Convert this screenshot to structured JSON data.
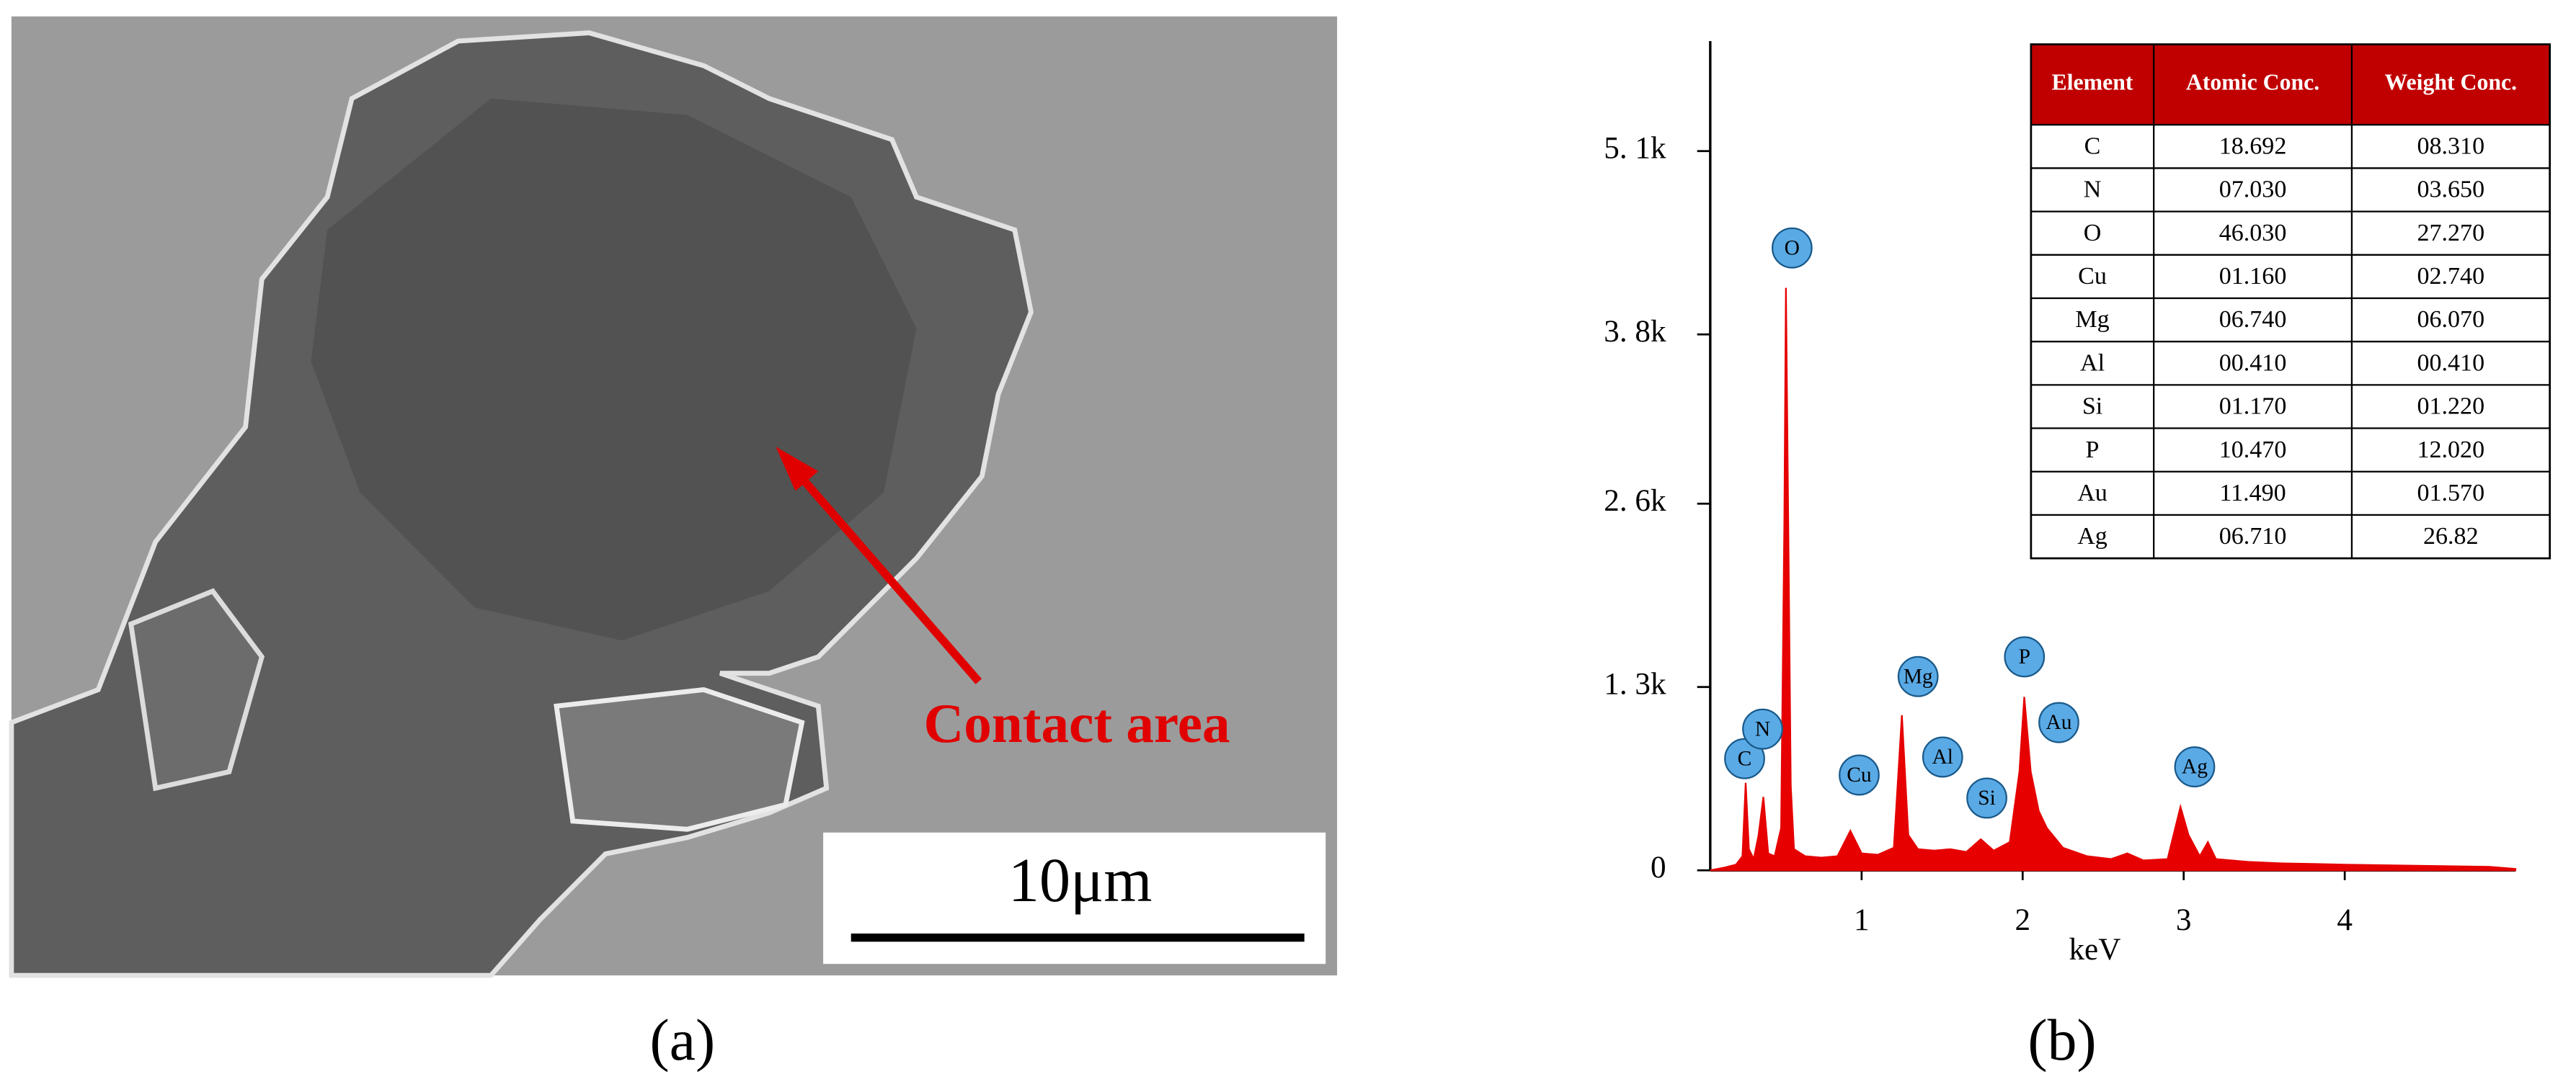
{
  "panel_a": {
    "annotation": "Contact area",
    "scale_bar": "10μm",
    "caption": "(a)"
  },
  "panel_b": {
    "caption": "(b)"
  },
  "chart_data": {
    "type": "area",
    "x_label": "keV",
    "x": [
      0.06,
      0.15,
      0.22,
      0.26,
      0.28,
      0.3,
      0.33,
      0.36,
      0.39,
      0.42,
      0.46,
      0.5,
      0.52,
      0.53,
      0.545,
      0.56,
      0.58,
      0.65,
      0.75,
      0.85,
      0.93,
      1.0,
      1.1,
      1.2,
      1.25,
      1.29,
      1.35,
      1.45,
      1.55,
      1.65,
      1.74,
      1.82,
      1.92,
      1.98,
      2.01,
      2.05,
      2.1,
      2.15,
      2.25,
      2.4,
      2.55,
      2.65,
      2.75,
      2.9,
      2.98,
      3.03,
      3.1,
      3.15,
      3.2,
      3.4,
      3.6,
      3.8,
      4.0,
      4.3,
      4.6,
      4.9,
      5.06
    ],
    "values": [
      0,
      20,
      40,
      100,
      620,
      150,
      80,
      250,
      520,
      120,
      100,
      300,
      2450,
      4130,
      2400,
      600,
      150,
      100,
      90,
      100,
      280,
      120,
      110,
      160,
      1100,
      250,
      150,
      140,
      150,
      130,
      220,
      140,
      200,
      700,
      1230,
      700,
      420,
      300,
      160,
      100,
      80,
      120,
      70,
      80,
      450,
      250,
      100,
      200,
      80,
      60,
      50,
      45,
      40,
      35,
      30,
      25,
      10
    ],
    "color": "#e60000",
    "xlim": [
      0.06,
      5.06
    ],
    "ylim": [
      0,
      5800
    ],
    "xticks": [
      1,
      2,
      3,
      4
    ],
    "yticks": [
      {
        "value": 0,
        "label": "0"
      },
      {
        "value": 1300,
        "label": "1. 3k"
      },
      {
        "value": 2600,
        "label": "2. 6k"
      },
      {
        "value": 3800,
        "label": "3. 8k"
      },
      {
        "value": 5100,
        "label": "5. 1k"
      }
    ],
    "peak_labels": [
      "C",
      "N",
      "O",
      "Cu",
      "Mg",
      "Al",
      "Si",
      "P",
      "Au",
      "Ag"
    ]
  },
  "table": {
    "header": [
      "Element",
      "Atomic Conc.",
      "Weight Conc."
    ],
    "rows": [
      [
        "C",
        "18.692",
        "08.310"
      ],
      [
        "N",
        "07.030",
        "03.650"
      ],
      [
        "O",
        "46.030",
        "27.270"
      ],
      [
        "Cu",
        "01.160",
        "02.740"
      ],
      [
        "Mg",
        "06.740",
        "06.070"
      ],
      [
        "Al",
        "00.410",
        "00.410"
      ],
      [
        "Si",
        "01.170",
        "01.220"
      ],
      [
        "P",
        "10.470",
        "12.020"
      ],
      [
        "Au",
        "11.490",
        "01.570"
      ],
      [
        "Ag",
        "06.710",
        "26.82"
      ]
    ]
  }
}
